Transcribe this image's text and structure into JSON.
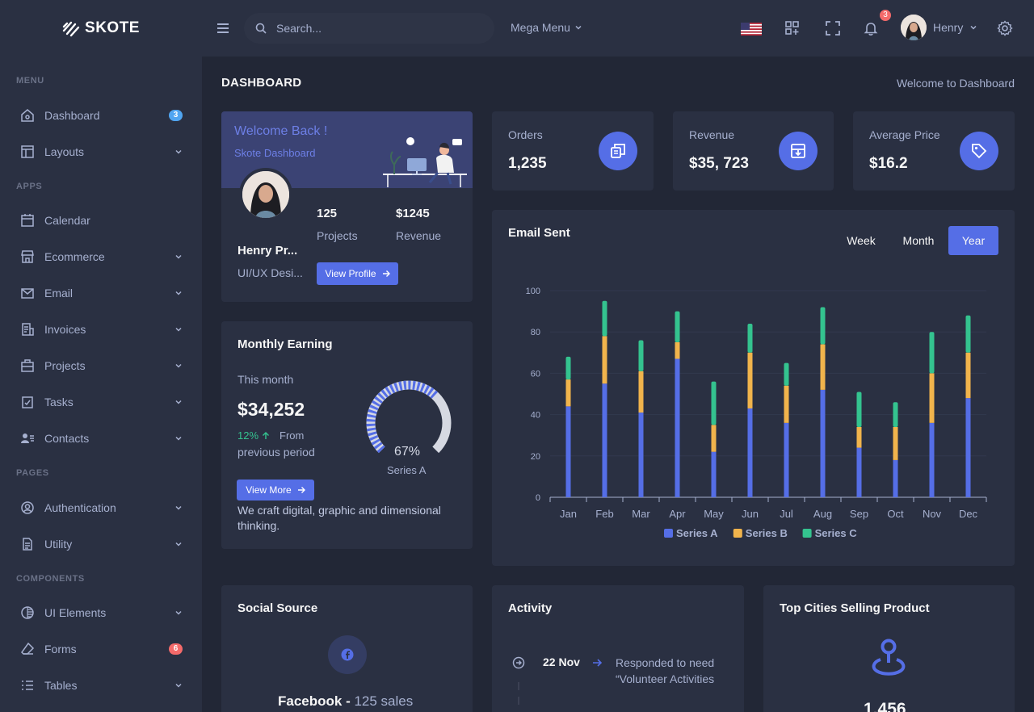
{
  "app": {
    "name": "SKOTE"
  },
  "sidebar": {
    "sections": [
      "MENU",
      "APPS",
      "PAGES",
      "COMPONENTS"
    ],
    "items": [
      {
        "label": "Dashboard",
        "icon": "home-icon",
        "badge": "3",
        "badge_color": "#50a5f1"
      },
      {
        "label": "Layouts",
        "icon": "layout-icon"
      },
      {
        "label": "Calendar",
        "icon": "calendar-icon"
      },
      {
        "label": "Ecommerce",
        "icon": "store-icon"
      },
      {
        "label": "Email",
        "icon": "envelope-icon"
      },
      {
        "label": "Invoices",
        "icon": "receipt-icon"
      },
      {
        "label": "Projects",
        "icon": "briefcase-icon"
      },
      {
        "label": "Tasks",
        "icon": "task-icon"
      },
      {
        "label": "Contacts",
        "icon": "contacts-icon"
      },
      {
        "label": "Authentication",
        "icon": "user-circle-icon"
      },
      {
        "label": "Utility",
        "icon": "file-icon"
      },
      {
        "label": "UI Elements",
        "icon": "tone-icon"
      },
      {
        "label": "Forms",
        "icon": "eraser-icon",
        "badge": "6",
        "badge_color": "#f46a6a"
      },
      {
        "label": "Tables",
        "icon": "list-icon"
      }
    ]
  },
  "topbar": {
    "search_placeholder": "Search...",
    "mega_menu": "Mega Menu",
    "notification_count": "3",
    "user_name": "Henry"
  },
  "page": {
    "title": "DASHBOARD",
    "breadcrumb": "Welcome to Dashboard"
  },
  "welcome": {
    "title": "Welcome Back !",
    "subtitle": "Skote Dashboard",
    "name": "Henry Pr...",
    "role": "UI/UX Desi...",
    "projects_value": "125",
    "projects_label": "Projects",
    "revenue_value": "$1245",
    "revenue_label": "Revenue",
    "button": "View Profile"
  },
  "stats": [
    {
      "label": "Orders",
      "value": "1,235",
      "icon": "copy-icon"
    },
    {
      "label": "Revenue",
      "value": "$35, 723",
      "icon": "archive-in-icon"
    },
    {
      "label": "Average Price",
      "value": "$16.2",
      "icon": "tag-icon"
    }
  ],
  "monthly_earning": {
    "title": "Monthly Earning",
    "period": "This month",
    "amount": "$34,252",
    "change": "12%",
    "change_from": "From",
    "change_period": "previous period",
    "gauge_percent": 67,
    "gauge_label": "67%",
    "gauge_series": "Series A",
    "button": "View More",
    "note": "We craft digital, graphic and dimensional thinking."
  },
  "email_sent": {
    "title": "Email Sent",
    "tabs": [
      "Week",
      "Month",
      "Year"
    ],
    "active_tab": "Year"
  },
  "chart_data": {
    "type": "bar",
    "stacked": true,
    "categories": [
      "Jan",
      "Feb",
      "Mar",
      "Apr",
      "May",
      "Jun",
      "Jul",
      "Aug",
      "Sep",
      "Oct",
      "Nov",
      "Dec"
    ],
    "series": [
      {
        "name": "Series A",
        "color": "#556ee6",
        "values": [
          44,
          55,
          41,
          67,
          22,
          43,
          36,
          52,
          24,
          18,
          36,
          48
        ]
      },
      {
        "name": "Series B",
        "color": "#f1b44c",
        "values": [
          13,
          23,
          20,
          8,
          13,
          27,
          18,
          22,
          10,
          16,
          24,
          22
        ]
      },
      {
        "name": "Series C",
        "color": "#34c38f",
        "values": [
          11,
          17,
          15,
          15,
          21,
          14,
          11,
          18,
          17,
          12,
          20,
          18
        ]
      }
    ],
    "ylim": [
      0,
      100
    ],
    "yticks": [
      "0",
      "20",
      "40",
      "60",
      "80",
      "100"
    ],
    "grid": true,
    "legend": "bottom-center"
  },
  "social": {
    "title": "Social Source",
    "line_name": "Facebook - ",
    "line_value": "125 sales"
  },
  "activity": {
    "title": "Activity",
    "date": "22 Nov",
    "text": "Responded to need “Volunteer Activities"
  },
  "top_cities": {
    "title": "Top Cities Selling Product",
    "value": "1,456"
  }
}
